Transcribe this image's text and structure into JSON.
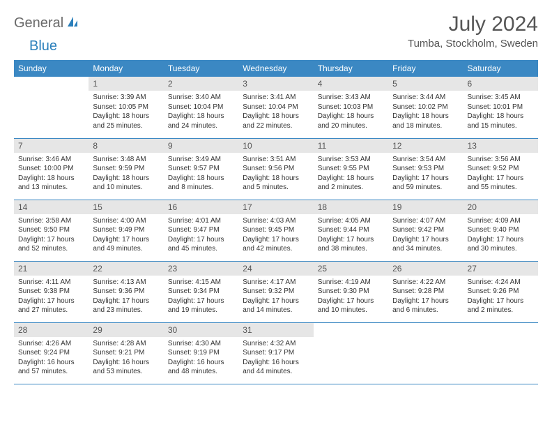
{
  "logo": {
    "text1": "General",
    "text2": "Blue"
  },
  "title": "July 2024",
  "location": "Tumba, Stockholm, Sweden",
  "colors": {
    "header_bg": "#3b88c3",
    "header_text": "#ffffff",
    "daynum_bg": "#e6e6e6",
    "border": "#3b88c3",
    "logo_gray": "#6a6a6a",
    "logo_blue": "#2a7fbb"
  },
  "weekdays": [
    "Sunday",
    "Monday",
    "Tuesday",
    "Wednesday",
    "Thursday",
    "Friday",
    "Saturday"
  ],
  "grid": [
    [
      null,
      {
        "n": "1",
        "sr": "3:39 AM",
        "ss": "10:05 PM",
        "dl": "18 hours and 25 minutes."
      },
      {
        "n": "2",
        "sr": "3:40 AM",
        "ss": "10:04 PM",
        "dl": "18 hours and 24 minutes."
      },
      {
        "n": "3",
        "sr": "3:41 AM",
        "ss": "10:04 PM",
        "dl": "18 hours and 22 minutes."
      },
      {
        "n": "4",
        "sr": "3:43 AM",
        "ss": "10:03 PM",
        "dl": "18 hours and 20 minutes."
      },
      {
        "n": "5",
        "sr": "3:44 AM",
        "ss": "10:02 PM",
        "dl": "18 hours and 18 minutes."
      },
      {
        "n": "6",
        "sr": "3:45 AM",
        "ss": "10:01 PM",
        "dl": "18 hours and 15 minutes."
      }
    ],
    [
      {
        "n": "7",
        "sr": "3:46 AM",
        "ss": "10:00 PM",
        "dl": "18 hours and 13 minutes."
      },
      {
        "n": "8",
        "sr": "3:48 AM",
        "ss": "9:59 PM",
        "dl": "18 hours and 10 minutes."
      },
      {
        "n": "9",
        "sr": "3:49 AM",
        "ss": "9:57 PM",
        "dl": "18 hours and 8 minutes."
      },
      {
        "n": "10",
        "sr": "3:51 AM",
        "ss": "9:56 PM",
        "dl": "18 hours and 5 minutes."
      },
      {
        "n": "11",
        "sr": "3:53 AM",
        "ss": "9:55 PM",
        "dl": "18 hours and 2 minutes."
      },
      {
        "n": "12",
        "sr": "3:54 AM",
        "ss": "9:53 PM",
        "dl": "17 hours and 59 minutes."
      },
      {
        "n": "13",
        "sr": "3:56 AM",
        "ss": "9:52 PM",
        "dl": "17 hours and 55 minutes."
      }
    ],
    [
      {
        "n": "14",
        "sr": "3:58 AM",
        "ss": "9:50 PM",
        "dl": "17 hours and 52 minutes."
      },
      {
        "n": "15",
        "sr": "4:00 AM",
        "ss": "9:49 PM",
        "dl": "17 hours and 49 minutes."
      },
      {
        "n": "16",
        "sr": "4:01 AM",
        "ss": "9:47 PM",
        "dl": "17 hours and 45 minutes."
      },
      {
        "n": "17",
        "sr": "4:03 AM",
        "ss": "9:45 PM",
        "dl": "17 hours and 42 minutes."
      },
      {
        "n": "18",
        "sr": "4:05 AM",
        "ss": "9:44 PM",
        "dl": "17 hours and 38 minutes."
      },
      {
        "n": "19",
        "sr": "4:07 AM",
        "ss": "9:42 PM",
        "dl": "17 hours and 34 minutes."
      },
      {
        "n": "20",
        "sr": "4:09 AM",
        "ss": "9:40 PM",
        "dl": "17 hours and 30 minutes."
      }
    ],
    [
      {
        "n": "21",
        "sr": "4:11 AM",
        "ss": "9:38 PM",
        "dl": "17 hours and 27 minutes."
      },
      {
        "n": "22",
        "sr": "4:13 AM",
        "ss": "9:36 PM",
        "dl": "17 hours and 23 minutes."
      },
      {
        "n": "23",
        "sr": "4:15 AM",
        "ss": "9:34 PM",
        "dl": "17 hours and 19 minutes."
      },
      {
        "n": "24",
        "sr": "4:17 AM",
        "ss": "9:32 PM",
        "dl": "17 hours and 14 minutes."
      },
      {
        "n": "25",
        "sr": "4:19 AM",
        "ss": "9:30 PM",
        "dl": "17 hours and 10 minutes."
      },
      {
        "n": "26",
        "sr": "4:22 AM",
        "ss": "9:28 PM",
        "dl": "17 hours and 6 minutes."
      },
      {
        "n": "27",
        "sr": "4:24 AM",
        "ss": "9:26 PM",
        "dl": "17 hours and 2 minutes."
      }
    ],
    [
      {
        "n": "28",
        "sr": "4:26 AM",
        "ss": "9:24 PM",
        "dl": "16 hours and 57 minutes."
      },
      {
        "n": "29",
        "sr": "4:28 AM",
        "ss": "9:21 PM",
        "dl": "16 hours and 53 minutes."
      },
      {
        "n": "30",
        "sr": "4:30 AM",
        "ss": "9:19 PM",
        "dl": "16 hours and 48 minutes."
      },
      {
        "n": "31",
        "sr": "4:32 AM",
        "ss": "9:17 PM",
        "dl": "16 hours and 44 minutes."
      },
      null,
      null,
      null
    ]
  ],
  "labels": {
    "sunrise": "Sunrise:",
    "sunset": "Sunset:",
    "daylight": "Daylight:"
  }
}
